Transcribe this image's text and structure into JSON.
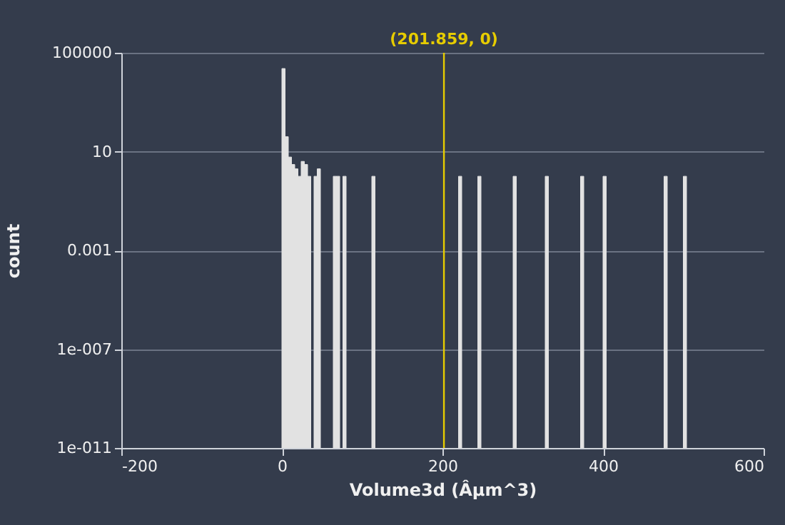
{
  "chart_data": {
    "type": "histogram",
    "xlabel": "Volume3d (Âµm^3)",
    "ylabel": "count",
    "bins": [
      0,
      4,
      8,
      12,
      16,
      20,
      24,
      28,
      32,
      36,
      40,
      44,
      48,
      52,
      56,
      60,
      64,
      68,
      72,
      76,
      80,
      84,
      88,
      92,
      96,
      100,
      104,
      108,
      112,
      116,
      120,
      124,
      128,
      132,
      136,
      140,
      144,
      148,
      152,
      156,
      160,
      164,
      168,
      172,
      176,
      180,
      184,
      188,
      192,
      196,
      200,
      204,
      208,
      212,
      216,
      220,
      224,
      228,
      232,
      236,
      240,
      244,
      248,
      252,
      256,
      260,
      264,
      268,
      272,
      276,
      280,
      284,
      288,
      292,
      296,
      300,
      304,
      308,
      312,
      316,
      320,
      324,
      328,
      332,
      336,
      340,
      344,
      348,
      352,
      356,
      360,
      364,
      368,
      372,
      376,
      380,
      384,
      388,
      392,
      396,
      400,
      404,
      408,
      412,
      416,
      420,
      424,
      428,
      432,
      436,
      440,
      444,
      448,
      452,
      456,
      460,
      464,
      468,
      472,
      476,
      480,
      484,
      488,
      492,
      496,
      500,
      504
    ],
    "values": [
      23000,
      40,
      6,
      3,
      2,
      1,
      4,
      3,
      1,
      null,
      1,
      2,
      null,
      null,
      null,
      null,
      1,
      1,
      null,
      1,
      null,
      null,
      null,
      null,
      null,
      null,
      null,
      null,
      1,
      null,
      null,
      null,
      null,
      null,
      null,
      null,
      null,
      null,
      null,
      null,
      null,
      null,
      null,
      null,
      null,
      null,
      null,
      null,
      null,
      null,
      null,
      null,
      null,
      null,
      null,
      1,
      null,
      null,
      null,
      null,
      null,
      1,
      null,
      null,
      null,
      null,
      null,
      null,
      null,
      null,
      null,
      null,
      1,
      null,
      null,
      null,
      null,
      null,
      null,
      null,
      null,
      null,
      1,
      null,
      null,
      null,
      null,
      null,
      null,
      null,
      null,
      null,
      null,
      1,
      null,
      null,
      null,
      null,
      null,
      null,
      1,
      null,
      null,
      null,
      null,
      null,
      null,
      null,
      null,
      null,
      null,
      null,
      null,
      null,
      null,
      null,
      null,
      null,
      null,
      1,
      null,
      null,
      null,
      null,
      null,
      1
    ],
    "color": "#e2e2e2",
    "log": "y",
    "xlim": [
      -200,
      600
    ],
    "xticks": [
      -200,
      0,
      200,
      400,
      600
    ],
    "ylim": [
      1e-11,
      100000
    ],
    "yticks": [
      {
        "value": 1e-11,
        "label": "1e-011"
      },
      {
        "value": 1e-07,
        "label": "1e-007"
      },
      0.001,
      10,
      100000
    ],
    "grid": "y",
    "ref_lines": [
      {
        "axis": "x",
        "value": 201.859,
        "label": "(201.859, 0)",
        "color": "#e6cc00"
      }
    ]
  }
}
